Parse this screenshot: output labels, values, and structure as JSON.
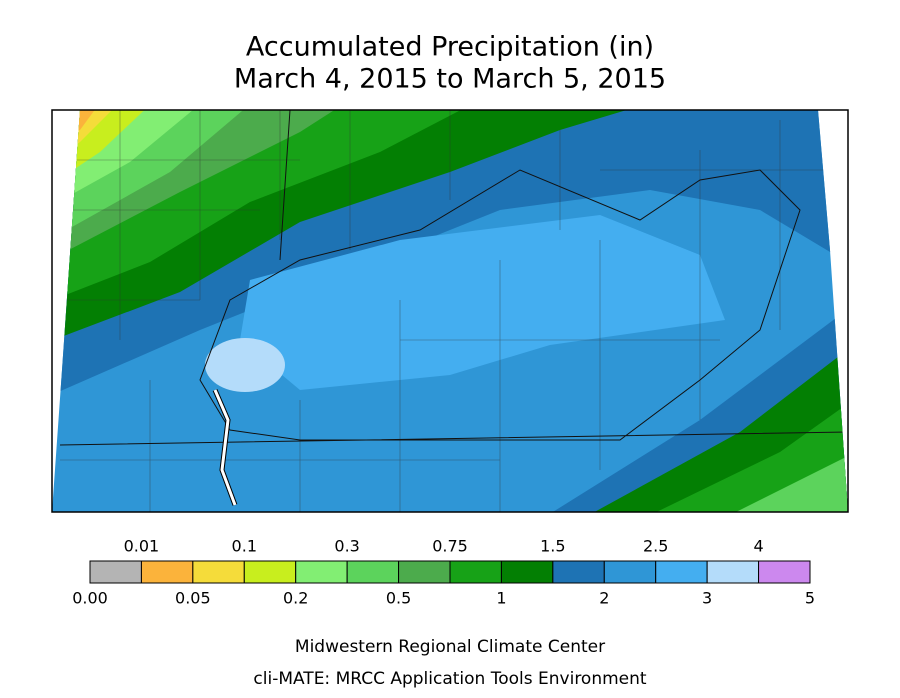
{
  "title": [
    "Accumulated Precipitation (in)",
    "March 4, 2015 to March 5, 2015"
  ],
  "legend": {
    "colors": [
      "#b4b4b4",
      "#fbb33b",
      "#f5dc3a",
      "#c8ee1e",
      "#82ee73",
      "#5cd35c",
      "#4cab4c",
      "#17a217",
      "#037f03",
      "#1e73b4",
      "#2f96d6",
      "#44aef0",
      "#b4dcfa",
      "#cc88ee"
    ],
    "top_labels": [
      "0.01",
      "0.1",
      "0.3",
      "0.75",
      "1.5",
      "2.5",
      "4"
    ],
    "bottom_labels": [
      "0.00",
      "0.05",
      "0.2",
      "0.5",
      "1",
      "2",
      "3",
      "5"
    ]
  },
  "footer": [
    "Midwestern Regional Climate Center",
    "cli-MATE: MRCC Application Tools Environment"
  ]
}
